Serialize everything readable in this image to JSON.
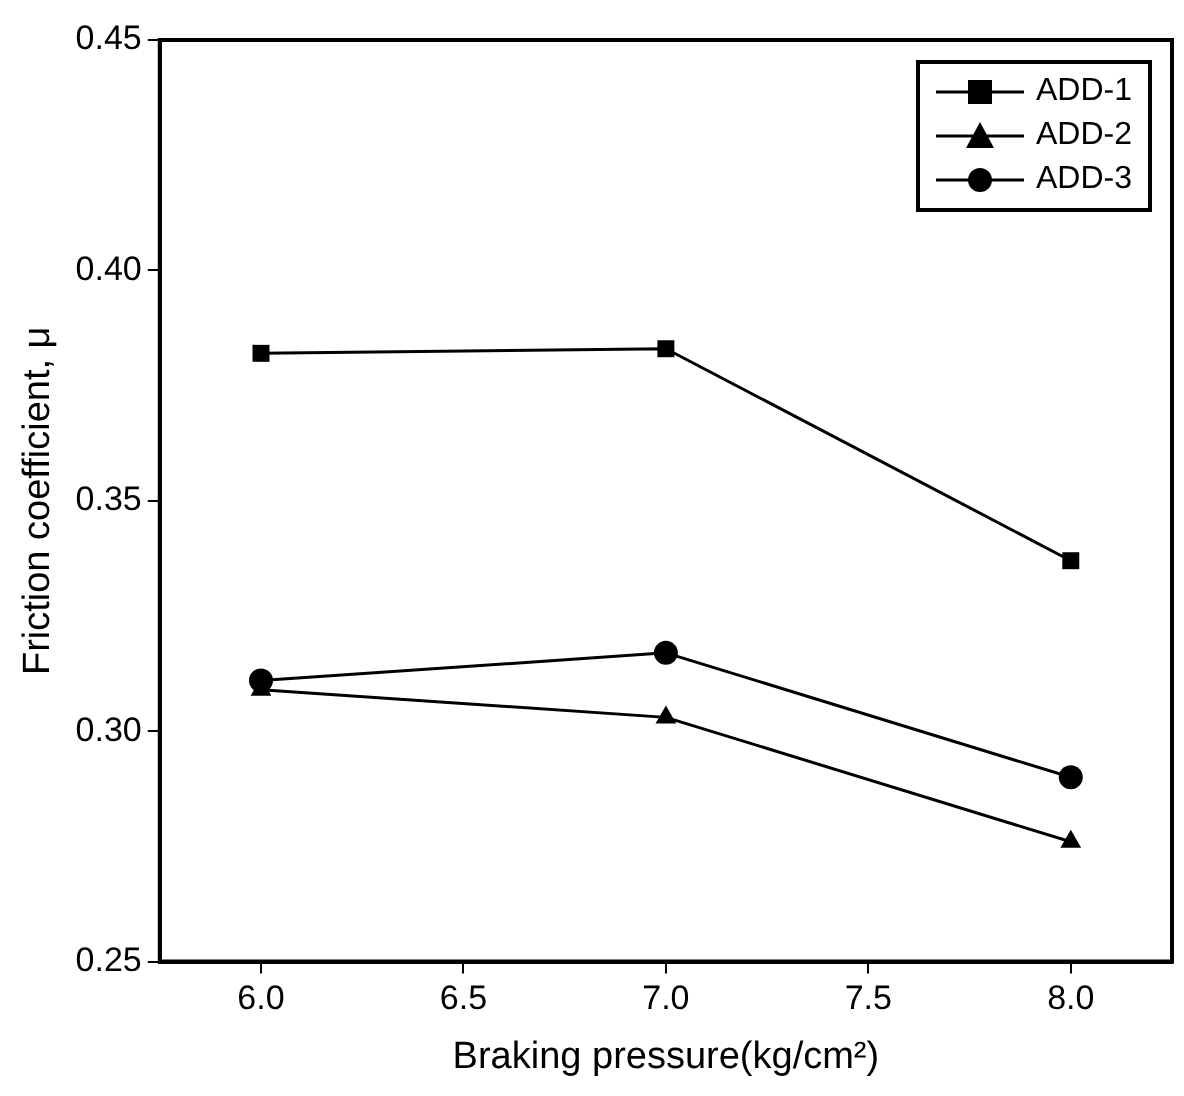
{
  "chart_data": {
    "type": "line",
    "xlabel": "Braking pressure(kg/cm²)",
    "ylabel": "Friction coefficient, μ",
    "x": [
      6.0,
      7.0,
      8.0
    ],
    "series": [
      {
        "name": "ADD-1",
        "color": "#000000",
        "marker": "square",
        "values": [
          0.382,
          0.383,
          0.337
        ]
      },
      {
        "name": "ADD-2",
        "color": "#000000",
        "marker": "triangle",
        "values": [
          0.309,
          0.303,
          0.276
        ]
      },
      {
        "name": "ADD-3",
        "color": "#000000",
        "marker": "circle",
        "values": [
          0.311,
          0.317,
          0.29
        ]
      }
    ],
    "xlim": [
      5.75,
      8.25
    ],
    "xticks": [
      {
        "value": 6,
        "label": "6.0"
      },
      6.5,
      {
        "value": 7,
        "label": "7.0"
      },
      7.5,
      {
        "value": 8,
        "label": "8.0"
      }
    ],
    "ylim": [
      0.25,
      0.45
    ],
    "yticks": [
      0.25,
      {
        "value": 0.3,
        "label": "0.30"
      },
      0.35,
      {
        "value": 0.4,
        "label": "0.40"
      },
      0.45
    ],
    "grid": false,
    "legend": "top right",
    "line_style": "solid"
  }
}
